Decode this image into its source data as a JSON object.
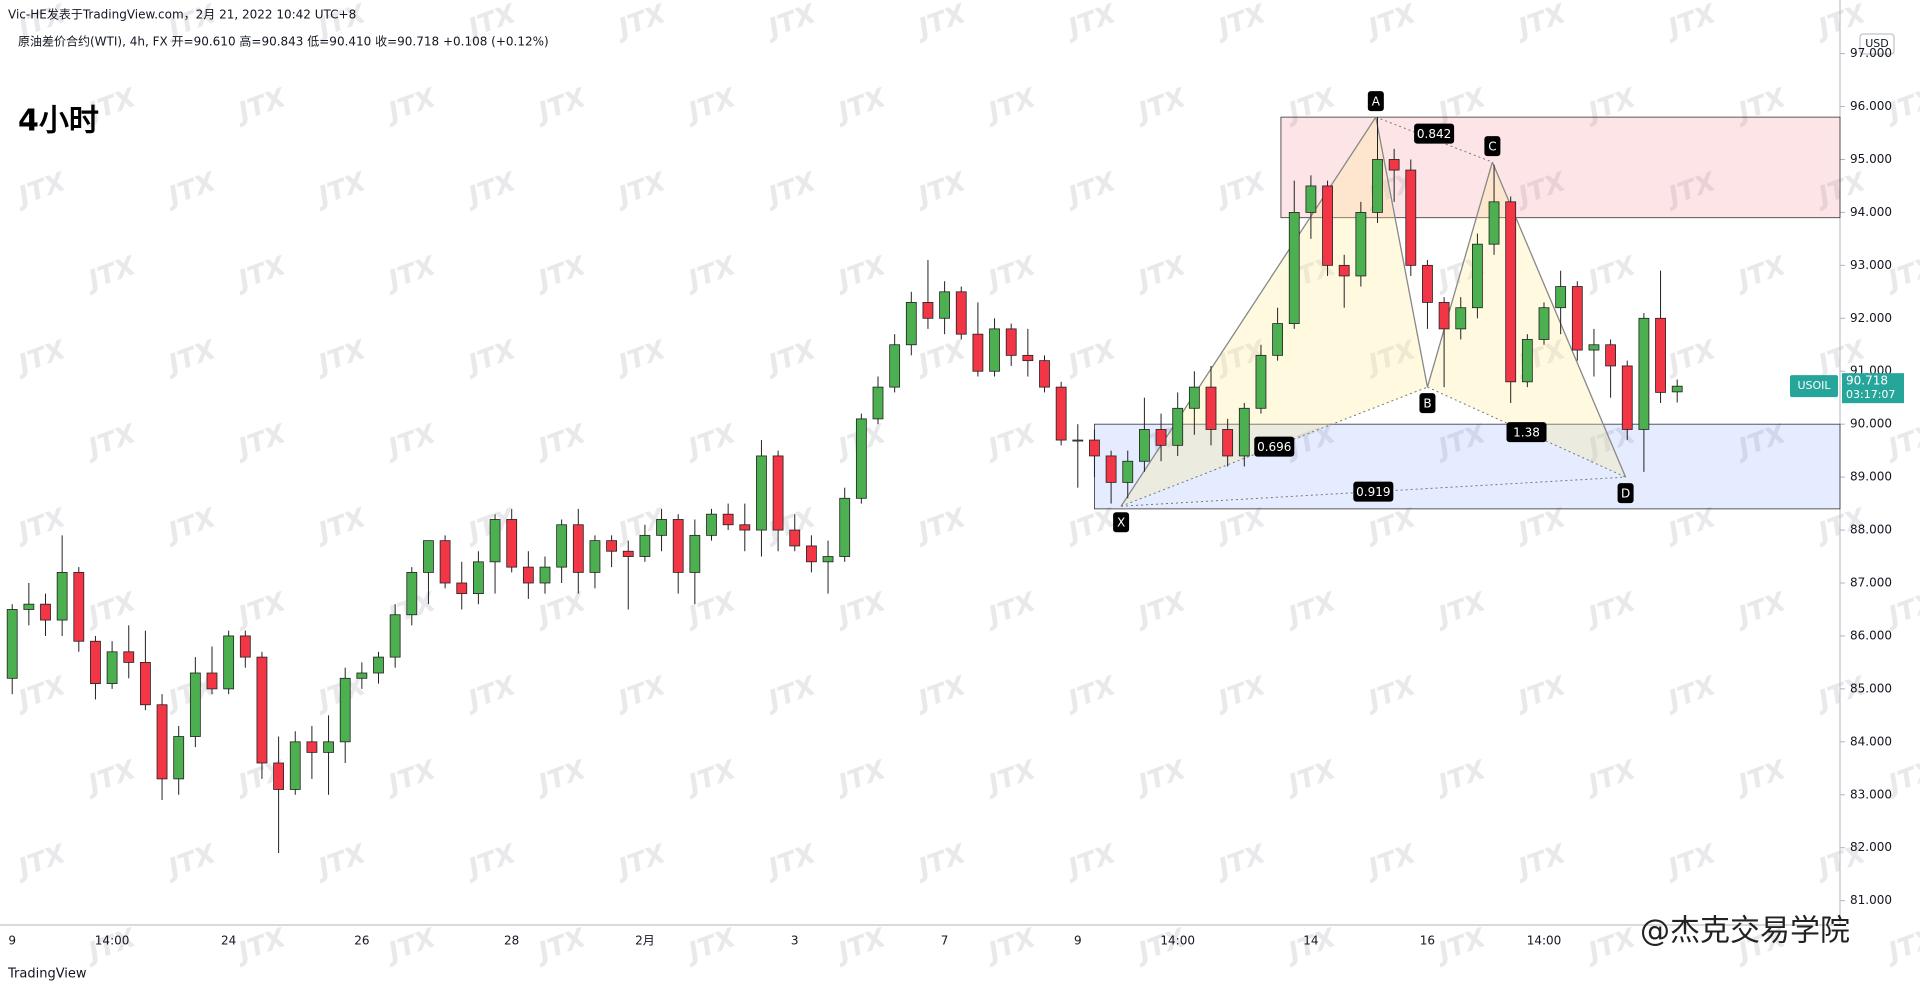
{
  "header": {
    "byline": "Vic-HE发表于TradingView.com，2月 21, 2022 10:42 UTC+8",
    "legend": "原油差价合约(WTI), 4h, FX  开=90.610  高=90.843  低=90.410  收=90.718  +0.108 (+0.12%)",
    "timeframe": "4小时",
    "currency": "USD"
  },
  "watermark": "JTX",
  "footer": {
    "brand": "TradingView",
    "credit": "@杰克交易学院"
  },
  "chart_data": {
    "type": "candlestick",
    "categories": [
      "9",
      null,
      null,
      null,
      null,
      null,
      "14:00",
      null,
      null,
      null,
      null,
      null,
      null,
      "24",
      null,
      null,
      null,
      null,
      null,
      null,
      null,
      "26",
      null,
      null,
      null,
      null,
      null,
      null,
      null,
      null,
      "28",
      null,
      null,
      null,
      null,
      null,
      null,
      null,
      "2月",
      null,
      null,
      null,
      null,
      null,
      null,
      null,
      null,
      "3",
      null,
      null,
      null,
      null,
      null,
      null,
      null,
      null,
      "7",
      null,
      null,
      null,
      null,
      null,
      null,
      null,
      "9",
      null,
      null,
      null,
      null,
      null,
      "14:00",
      null,
      null,
      null,
      null,
      null,
      null,
      null,
      "14",
      null,
      null,
      null,
      null,
      null,
      null,
      "16",
      null,
      null,
      null,
      null,
      null,
      null,
      "14:00",
      null,
      null,
      null,
      null,
      null,
      null,
      null,
      null
    ],
    "series": [
      {
        "name": "USOIL",
        "up_color": "#4caf50",
        "down_color": "#f23645",
        "open": [
          85.2,
          86.5,
          86.6,
          86.3,
          87.2,
          85.9,
          85.1,
          85.7,
          85.5,
          84.7,
          83.3,
          84.1,
          85.3,
          85.0,
          86.0,
          85.6,
          83.6,
          83.1,
          84.0,
          83.8,
          84.0,
          85.2,
          85.3,
          85.6,
          86.4,
          87.2,
          87.8,
          87.0,
          86.8,
          87.4,
          88.2,
          87.3,
          87.0,
          87.3,
          88.1,
          87.2,
          87.8,
          87.6,
          87.5,
          87.9,
          88.2,
          87.2,
          87.9,
          88.3,
          88.1,
          88.0,
          89.4,
          88.0,
          87.7,
          87.4,
          87.5,
          88.6,
          90.1,
          90.7,
          91.5,
          92.3,
          92.0,
          92.5,
          91.7,
          91.0,
          91.8,
          91.3,
          91.2,
          90.7,
          89.7,
          89.7,
          89.4,
          88.9,
          89.3,
          89.9,
          89.6,
          90.3,
          90.7,
          89.9,
          89.4,
          90.3,
          91.3,
          91.9,
          94.0,
          94.5,
          93.0,
          92.8,
          94.0,
          95.0,
          94.8,
          93.0,
          92.3,
          91.8,
          92.2,
          93.4,
          94.2,
          90.8,
          91.6,
          92.2,
          92.6,
          91.4,
          91.5,
          91.1,
          89.9,
          92.0,
          90.61
        ],
        "high": [
          86.6,
          87.0,
          86.8,
          87.9,
          87.3,
          86.0,
          85.9,
          86.2,
          86.1,
          84.9,
          84.3,
          85.6,
          85.8,
          86.1,
          86.1,
          85.7,
          84.1,
          84.2,
          84.3,
          84.5,
          85.4,
          85.5,
          85.7,
          86.6,
          87.3,
          87.8,
          87.9,
          87.4,
          87.6,
          88.3,
          88.4,
          87.6,
          87.5,
          88.2,
          88.4,
          87.9,
          87.9,
          87.8,
          88.1,
          88.4,
          88.3,
          88.2,
          88.4,
          88.5,
          88.5,
          89.7,
          89.5,
          88.3,
          87.9,
          87.8,
          88.8,
          90.2,
          90.9,
          91.7,
          92.5,
          93.1,
          92.7,
          92.6,
          92.3,
          92.0,
          91.9,
          91.8,
          91.3,
          90.8,
          90.0,
          89.9,
          89.5,
          89.5,
          90.5,
          90.2,
          90.6,
          91.0,
          91.1,
          90.1,
          90.4,
          91.5,
          92.2,
          94.6,
          94.7,
          94.6,
          93.2,
          94.2,
          95.8,
          95.2,
          95.0,
          93.1,
          92.4,
          92.4,
          93.6,
          94.9,
          94.3,
          91.7,
          92.3,
          92.9,
          92.7,
          91.8,
          91.6,
          91.2,
          92.1,
          92.9,
          90.843
        ],
        "low": [
          84.9,
          86.2,
          86.0,
          86.0,
          85.7,
          84.8,
          85.0,
          85.2,
          84.6,
          82.9,
          83.0,
          83.9,
          84.9,
          84.9,
          85.4,
          83.3,
          81.9,
          83.0,
          83.3,
          83.0,
          83.6,
          85.0,
          85.1,
          85.4,
          86.2,
          86.6,
          86.9,
          86.5,
          86.6,
          86.8,
          87.2,
          86.7,
          86.8,
          87.0,
          86.8,
          86.9,
          87.3,
          86.5,
          87.4,
          87.6,
          86.8,
          86.6,
          87.8,
          88.0,
          87.6,
          87.5,
          87.6,
          87.6,
          87.2,
          86.8,
          87.4,
          88.5,
          90.0,
          90.6,
          91.3,
          91.8,
          91.7,
          91.6,
          90.9,
          90.9,
          91.1,
          90.9,
          90.6,
          89.6,
          88.8,
          89.0,
          88.5,
          88.6,
          89.1,
          89.3,
          89.4,
          89.8,
          89.6,
          89.2,
          89.2,
          90.2,
          91.2,
          91.8,
          93.5,
          92.8,
          92.2,
          92.6,
          93.8,
          94.2,
          92.8,
          91.8,
          90.7,
          91.6,
          92.0,
          93.2,
          90.4,
          90.7,
          91.5,
          91.7,
          91.2,
          90.9,
          90.5,
          89.7,
          89.1,
          90.4,
          90.41
        ],
        "close": [
          86.5,
          86.6,
          86.3,
          87.2,
          85.9,
          85.1,
          85.7,
          85.5,
          84.7,
          83.3,
          84.1,
          85.3,
          85.0,
          86.0,
          85.6,
          83.6,
          83.1,
          84.0,
          83.8,
          84.0,
          85.2,
          85.3,
          85.6,
          86.4,
          87.2,
          87.8,
          87.0,
          86.8,
          87.4,
          88.2,
          87.3,
          87.0,
          87.3,
          88.1,
          87.2,
          87.8,
          87.6,
          87.5,
          87.9,
          88.2,
          87.2,
          87.9,
          88.3,
          88.1,
          88.0,
          89.4,
          88.0,
          87.7,
          87.4,
          87.5,
          88.6,
          90.1,
          90.7,
          91.5,
          92.3,
          92.0,
          92.5,
          91.7,
          91.0,
          91.8,
          91.3,
          91.2,
          90.7,
          89.7,
          89.7,
          89.4,
          88.9,
          89.3,
          89.9,
          89.6,
          90.3,
          90.7,
          89.9,
          89.4,
          90.3,
          91.3,
          91.9,
          94.0,
          94.5,
          93.0,
          92.8,
          94.0,
          95.0,
          94.8,
          93.0,
          92.3,
          91.8,
          92.2,
          93.4,
          94.2,
          90.8,
          91.6,
          92.2,
          92.6,
          91.4,
          91.5,
          91.1,
          89.9,
          92.0,
          90.6,
          90.718
        ]
      }
    ],
    "ylim": [
      80.54,
      97.37
    ],
    "yticks": [
      {
        "value": 81,
        "label": "81.000"
      },
      {
        "value": 82,
        "label": "82.000"
      },
      {
        "value": 83,
        "label": "83.000"
      },
      {
        "value": 84,
        "label": "84.000"
      },
      {
        "value": 85,
        "label": "85.000"
      },
      {
        "value": 86,
        "label": "86.000"
      },
      {
        "value": 87,
        "label": "87.000"
      },
      {
        "value": 88,
        "label": "88.000"
      },
      {
        "value": 89,
        "label": "89.000"
      },
      {
        "value": 90,
        "label": "90.000"
      },
      {
        "value": 91,
        "label": "91.000"
      },
      {
        "value": 92,
        "label": "92.000"
      },
      {
        "value": 93,
        "label": "93.000"
      },
      {
        "value": 94,
        "label": "94.000"
      },
      {
        "value": 95,
        "label": "95.000"
      },
      {
        "value": 96,
        "label": "96.000"
      },
      {
        "value": 97,
        "label": "97.000"
      }
    ],
    "zones": [
      {
        "from": 93.9,
        "to": 95.8,
        "color": "rgba(242,54,69,0.13)"
      },
      {
        "from": 88.4,
        "to": 90.0,
        "color": "rgba(41,98,255,0.12)"
      }
    ],
    "pattern": {
      "points": [
        {
          "label": "X",
          "price": 88.45
        },
        {
          "label": "A",
          "price": 95.8
        },
        {
          "label": "B",
          "price": 90.7
        },
        {
          "label": "C",
          "price": 94.95
        },
        {
          "label": "D",
          "price": 89.0
        }
      ],
      "ratios": [
        0.696,
        0.842,
        1.38,
        0.919
      ],
      "fill": "rgba(255,235,140,0.28)"
    },
    "last": {
      "symbol": "USOIL",
      "price": 90.718,
      "countdown": "03:17:07",
      "color": "#26a69a"
    }
  }
}
